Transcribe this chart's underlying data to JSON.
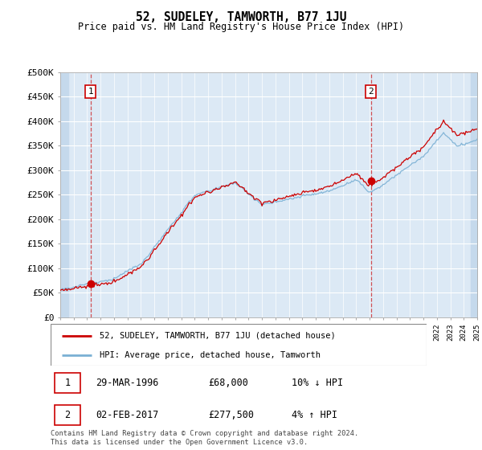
{
  "title": "52, SUDELEY, TAMWORTH, B77 1JU",
  "subtitle": "Price paid vs. HM Land Registry's House Price Index (HPI)",
  "legend_line1": "52, SUDELEY, TAMWORTH, B77 1JU (detached house)",
  "legend_line2": "HPI: Average price, detached house, Tamworth",
  "annotation1_date": "29-MAR-1996",
  "annotation1_price": "£68,000",
  "annotation1_hpi": "10% ↓ HPI",
  "annotation1_year": 1996.25,
  "annotation1_value": 68000,
  "annotation2_date": "02-FEB-2017",
  "annotation2_price": "£277,500",
  "annotation2_hpi": "4% ↑ HPI",
  "annotation2_year": 2017.09,
  "annotation2_value": 277500,
  "footer": "Contains HM Land Registry data © Crown copyright and database right 2024.\nThis data is licensed under the Open Government Licence v3.0.",
  "ylim": [
    0,
    500000
  ],
  "xlim_start": 1994,
  "xlim_end": 2025,
  "background_color": "#dce9f5",
  "grid_color": "#ffffff",
  "hpi_color": "#7ab0d4",
  "price_color": "#cc0000",
  "title_fontsize": 11,
  "subtitle_fontsize": 9
}
